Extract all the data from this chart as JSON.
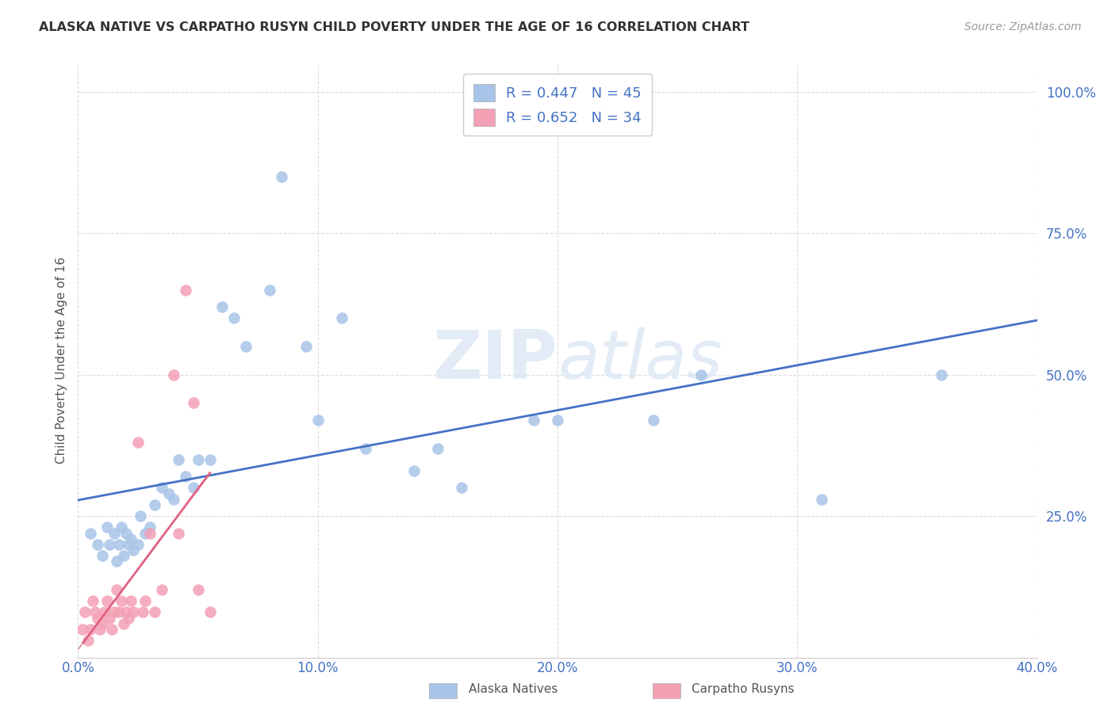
{
  "title": "ALASKA NATIVE VS CARPATHO RUSYN CHILD POVERTY UNDER THE AGE OF 16 CORRELATION CHART",
  "source": "Source: ZipAtlas.com",
  "ylabel": "Child Poverty Under the Age of 16",
  "xlim": [
    0.0,
    0.4
  ],
  "ylim": [
    0.0,
    1.05
  ],
  "xticks": [
    0.0,
    0.1,
    0.2,
    0.3,
    0.4
  ],
  "xtick_labels": [
    "0.0%",
    "10.0%",
    "20.0%",
    "30.0%",
    "40.0%"
  ],
  "yticks": [
    0.0,
    0.25,
    0.5,
    0.75,
    1.0
  ],
  "ytick_labels": [
    "",
    "25.0%",
    "50.0%",
    "75.0%",
    "100.0%"
  ],
  "grid_color": "#dddddd",
  "background_color": "#ffffff",
  "title_color": "#333333",
  "axis_label_color": "#4472c4",
  "alaska_color": "#a8c4e8",
  "carpatho_color": "#f4a0b5",
  "alaska_line_color": "#4472c4",
  "carpatho_line_color": "#e06080",
  "carpatho_line_dashed_color": "#d4a0b0",
  "legend_alaska_label": "R = 0.447   N = 45",
  "legend_carpatho_label": "R = 0.652   N = 34",
  "legend_label_color": "#4472c4",
  "alaska_natives_label": "Alaska Natives",
  "carpatho_rusyns_label": "Carpatho Rusyns",
  "alaska_scatter_x": [
    0.005,
    0.008,
    0.01,
    0.012,
    0.013,
    0.015,
    0.016,
    0.017,
    0.018,
    0.019,
    0.02,
    0.021,
    0.022,
    0.023,
    0.025,
    0.026,
    0.028,
    0.03,
    0.032,
    0.035,
    0.038,
    0.04,
    0.042,
    0.045,
    0.048,
    0.05,
    0.055,
    0.06,
    0.065,
    0.07,
    0.08,
    0.085,
    0.095,
    0.1,
    0.11,
    0.12,
    0.14,
    0.15,
    0.16,
    0.19,
    0.2,
    0.24,
    0.26,
    0.31,
    0.36
  ],
  "alaska_scatter_y": [
    0.22,
    0.2,
    0.18,
    0.23,
    0.2,
    0.22,
    0.17,
    0.2,
    0.23,
    0.18,
    0.22,
    0.2,
    0.21,
    0.19,
    0.2,
    0.25,
    0.22,
    0.23,
    0.27,
    0.3,
    0.29,
    0.28,
    0.35,
    0.32,
    0.3,
    0.35,
    0.35,
    0.62,
    0.6,
    0.55,
    0.65,
    0.85,
    0.55,
    0.42,
    0.6,
    0.37,
    0.33,
    0.37,
    0.3,
    0.42,
    0.42,
    0.42,
    0.5,
    0.28,
    0.5
  ],
  "carpatho_scatter_x": [
    0.002,
    0.003,
    0.004,
    0.005,
    0.006,
    0.007,
    0.008,
    0.009,
    0.01,
    0.011,
    0.012,
    0.013,
    0.014,
    0.015,
    0.016,
    0.017,
    0.018,
    0.019,
    0.02,
    0.021,
    0.022,
    0.023,
    0.025,
    0.027,
    0.028,
    0.03,
    0.032,
    0.035,
    0.04,
    0.042,
    0.045,
    0.048,
    0.05,
    0.055
  ],
  "carpatho_scatter_y": [
    0.05,
    0.08,
    0.03,
    0.05,
    0.1,
    0.08,
    0.07,
    0.05,
    0.06,
    0.08,
    0.1,
    0.07,
    0.05,
    0.08,
    0.12,
    0.08,
    0.1,
    0.06,
    0.08,
    0.07,
    0.1,
    0.08,
    0.38,
    0.08,
    0.1,
    0.22,
    0.08,
    0.12,
    0.5,
    0.22,
    0.65,
    0.45,
    0.12,
    0.08
  ]
}
